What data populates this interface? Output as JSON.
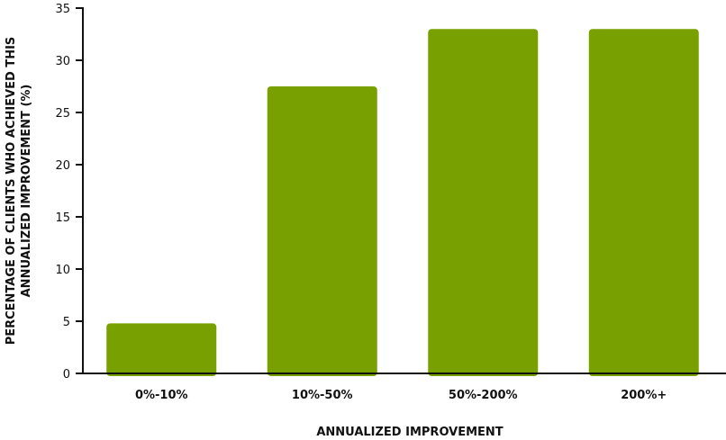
{
  "chart_data": {
    "type": "bar",
    "categories": [
      "0%-10%",
      "10%-50%",
      "50%-200%",
      "200%+"
    ],
    "values": [
      4.8,
      27.5,
      33,
      33
    ],
    "title": "",
    "xlabel": "ANNUALIZED IMPROVEMENT",
    "ylabel_lines": [
      "PERCENTAGE OF CLIENTS WHO ACHIEVED THIS",
      "ANNUALIZED IMPROVEMENT (%)"
    ],
    "ylim": [
      0,
      35
    ],
    "yticks": [
      0,
      5,
      10,
      15,
      20,
      25,
      30,
      35
    ],
    "grid": false,
    "legend": "none",
    "bar_color": "#78a100"
  }
}
